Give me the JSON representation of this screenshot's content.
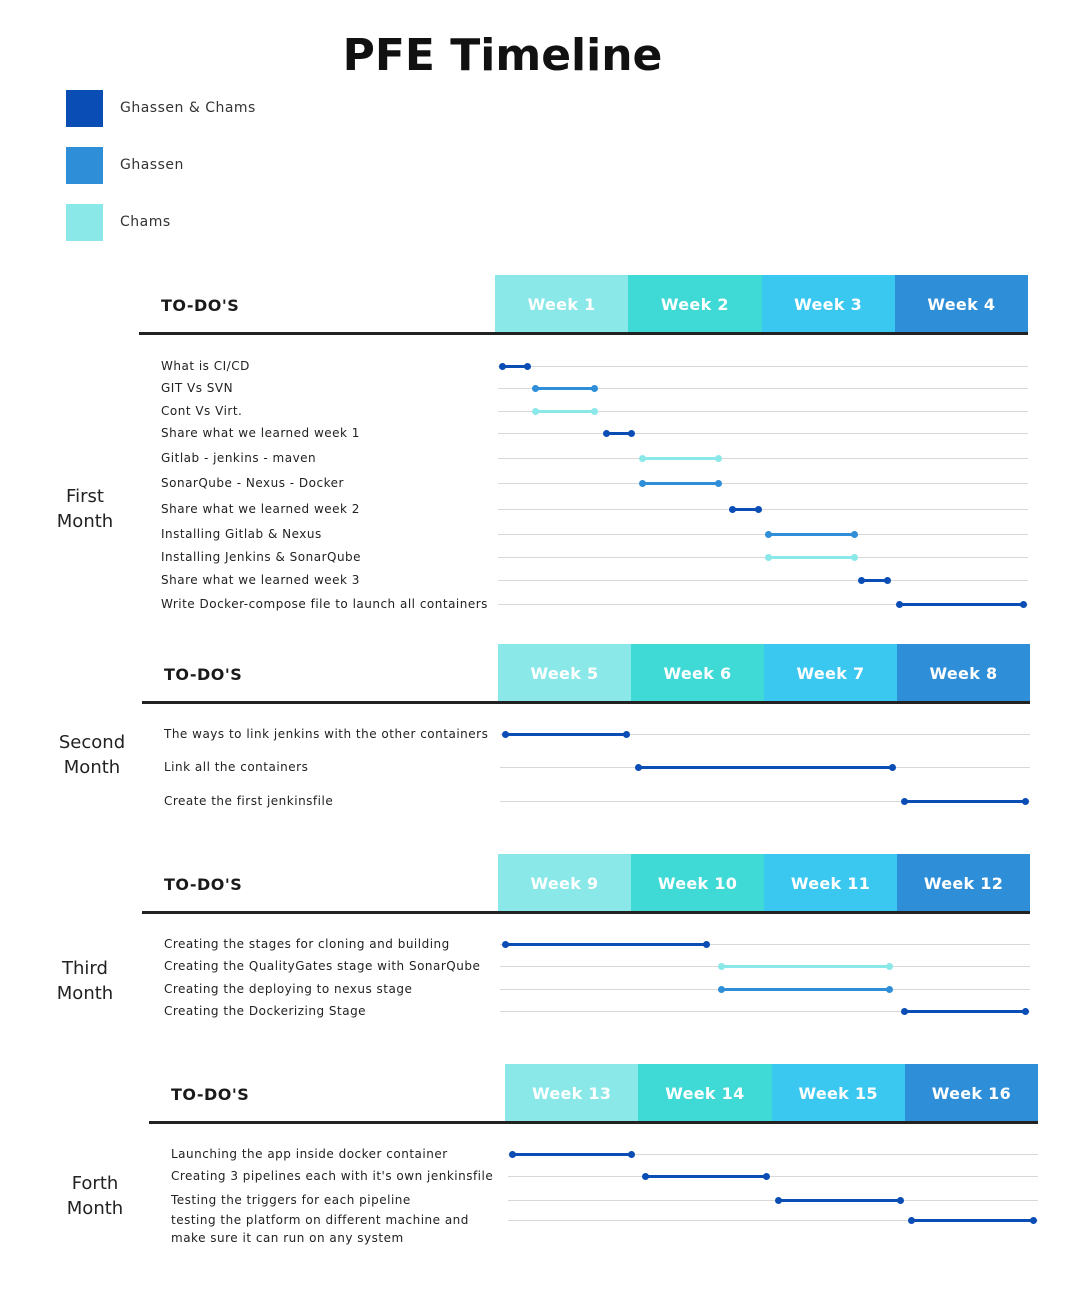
{
  "title": "PFE Timeline",
  "colors": {
    "both": "#0a4db5",
    "ghassen": "#2e8ed8",
    "chams": "#8ae8e8",
    "week_shades": [
      "#8be8e8",
      "#3fd9d6",
      "#3ac8f0",
      "#2e8ed8"
    ]
  },
  "legend": [
    {
      "label": "Ghassen & Chams",
      "owner": "both"
    },
    {
      "label": "Ghassen",
      "owner": "ghassen"
    },
    {
      "label": "Chams",
      "owner": "chams"
    }
  ],
  "header_label": "TO-DO'S",
  "months": [
    {
      "label": "First\nMonth",
      "weeks": [
        "Week 1",
        "Week 2",
        "Week 3",
        "Week 4"
      ],
      "tasks": [
        {
          "label": "What is CI/CD",
          "owner": "both",
          "start": 0.05,
          "end": 0.25
        },
        {
          "label": "GIT Vs SVN",
          "owner": "ghassen",
          "start": 0.3,
          "end": 0.75
        },
        {
          "label": "Cont Vs Virt.",
          "owner": "chams",
          "start": 0.3,
          "end": 0.75
        },
        {
          "label": "Share what we learned week 1",
          "owner": "both",
          "start": 0.83,
          "end": 1.03
        },
        {
          "label": "Gitlab - jenkins - maven",
          "owner": "chams",
          "start": 1.1,
          "end": 1.68
        },
        {
          "label": "SonarQube - Nexus - Docker",
          "owner": "ghassen",
          "start": 1.1,
          "end": 1.68
        },
        {
          "label": "Share what we learned week 2",
          "owner": "both",
          "start": 1.78,
          "end": 1.98
        },
        {
          "label": "Installing Gitlab & Nexus",
          "owner": "ghassen",
          "start": 2.05,
          "end": 2.7
        },
        {
          "label": "Installing Jenkins & SonarQube",
          "owner": "chams",
          "start": 2.05,
          "end": 2.7
        },
        {
          "label": "Share what we learned week 3",
          "owner": "both",
          "start": 2.75,
          "end": 2.95
        },
        {
          "label": "Write Docker-compose file to launch all containers",
          "owner": "both",
          "start": 3.03,
          "end": 3.97
        }
      ]
    },
    {
      "label": "Second\nMonth",
      "weeks": [
        "Week 5",
        "Week 6",
        "Week 7",
        "Week 8"
      ],
      "tasks": [
        {
          "label": "The ways to link jenkins with the other containers",
          "owner": "both",
          "start": 0.05,
          "end": 0.97
        },
        {
          "label": "Link all the containers",
          "owner": "both",
          "start": 1.05,
          "end": 2.97
        },
        {
          "label": "Create the first jenkinsfile",
          "owner": "both",
          "start": 3.05,
          "end": 3.97
        }
      ]
    },
    {
      "label": "Third\nMonth",
      "weeks": [
        "Week 9",
        "Week 10",
        "Week 11",
        "Week 12"
      ],
      "tasks": [
        {
          "label": "Creating the stages for cloning and building",
          "owner": "both",
          "start": 0.05,
          "end": 1.57
        },
        {
          "label": "Creating the QualityGates stage with SonarQube",
          "owner": "chams",
          "start": 1.68,
          "end": 2.95
        },
        {
          "label": "Creating the deploying to nexus stage",
          "owner": "ghassen",
          "start": 1.68,
          "end": 2.95
        },
        {
          "label": "Creating the Dockerizing Stage",
          "owner": "both",
          "start": 3.05,
          "end": 3.97
        }
      ]
    },
    {
      "label": "Forth\nMonth",
      "weeks": [
        "Week 13",
        "Week 14",
        "Week 15",
        "Week 16"
      ],
      "tasks": [
        {
          "label": "Launching the app inside docker container",
          "owner": "both",
          "start": 0.05,
          "end": 0.95
        },
        {
          "label": "Creating 3 pipelines each with it's own jenkinsfile",
          "owner": "both",
          "start": 1.05,
          "end": 1.97
        },
        {
          "label": "Testing the triggers for each pipeline",
          "owner": "both",
          "start": 2.05,
          "end": 2.97
        },
        {
          "label": "testing the platform on different machine and",
          "label2": "make sure it can run on any system",
          "owner": "both",
          "start": 3.05,
          "end": 3.97
        }
      ]
    }
  ]
}
